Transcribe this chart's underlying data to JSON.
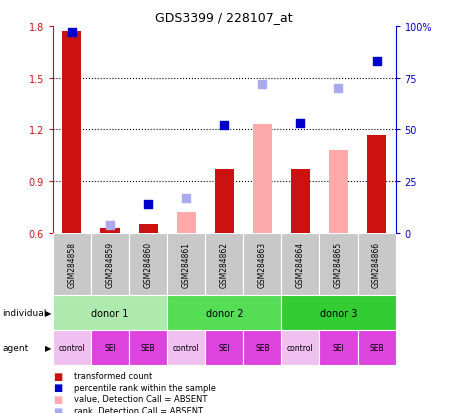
{
  "title": "GDS3399 / 228107_at",
  "samples": [
    "GSM284858",
    "GSM284859",
    "GSM284860",
    "GSM284861",
    "GSM284862",
    "GSM284863",
    "GSM284864",
    "GSM284865",
    "GSM284866"
  ],
  "transformed_count": [
    1.77,
    0.63,
    0.65,
    null,
    0.97,
    null,
    0.97,
    null,
    1.17
  ],
  "transformed_count_absent": [
    null,
    null,
    null,
    0.72,
    null,
    1.23,
    null,
    1.08,
    null
  ],
  "percentile_rank": [
    97,
    null,
    14,
    null,
    52,
    null,
    53,
    null,
    83
  ],
  "percentile_rank_absent": [
    null,
    4,
    null,
    17,
    null,
    72,
    null,
    70,
    null
  ],
  "ylim_left": [
    0.6,
    1.8
  ],
  "ylim_right": [
    0,
    100
  ],
  "yticks_left": [
    0.6,
    0.9,
    1.2,
    1.5,
    1.8
  ],
  "yticks_right": [
    0,
    25,
    50,
    75,
    100
  ],
  "ytick_labels_left": [
    "0.6",
    "0.9",
    "1.2",
    "1.5",
    "1.8"
  ],
  "ytick_labels_right": [
    "0",
    "25",
    "50",
    "75",
    "100%"
  ],
  "individual_groups": [
    {
      "label": "donor 1",
      "start": 0,
      "end": 3,
      "color": "#AEEAAE"
    },
    {
      "label": "donor 2",
      "start": 3,
      "end": 6,
      "color": "#55DD55"
    },
    {
      "label": "donor 3",
      "start": 6,
      "end": 9,
      "color": "#33CC33"
    }
  ],
  "agent_labels": [
    "control",
    "SEI",
    "SEB",
    "control",
    "SEI",
    "SEB",
    "control",
    "SEI",
    "SEB"
  ],
  "bar_width": 0.5,
  "bar_color_present": "#CC1111",
  "bar_color_absent": "#FFAAAA",
  "dot_color_present": "#0000CC",
  "dot_color_absent": "#AAAAEE",
  "left_axis_color": "#CC1111",
  "right_axis_color": "#0000CC",
  "control_color": "#F0C0F0",
  "sei_seb_color": "#DD44DD",
  "sample_box_color": "#C8C8C8",
  "gridline_color": "black",
  "legend_items": [
    {
      "color": "#CC1111",
      "marker": "square",
      "label": "transformed count"
    },
    {
      "color": "#0000CC",
      "marker": "square",
      "label": "percentile rank within the sample"
    },
    {
      "color": "#FFAAAA",
      "marker": "square",
      "label": "value, Detection Call = ABSENT"
    },
    {
      "color": "#AAAAEE",
      "marker": "square",
      "label": "rank, Detection Call = ABSENT"
    }
  ]
}
